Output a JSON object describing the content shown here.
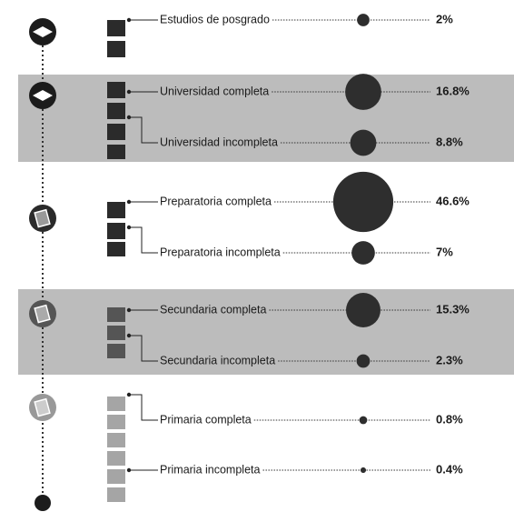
{
  "chart_data": {
    "type": "bubble",
    "categories": [
      "Estudios de posgrado",
      "Universidad completa",
      "Universidad incompleta",
      "Preparatoria completa",
      "Preparatoria incompleta",
      "Secundaria completa",
      "Secundaria incompleta",
      "Primaria completa",
      "Primaria incompleta"
    ],
    "values": [
      2,
      16.8,
      8.8,
      46.6,
      7,
      15.3,
      2.3,
      0.8,
      0.4
    ],
    "value_labels": [
      "2%",
      "16.8%",
      "8.8%",
      "46.6%",
      "7%",
      "15.3%",
      "2.3%",
      "0.8%",
      "0.4%"
    ],
    "color": "#2e2e2e"
  }
}
